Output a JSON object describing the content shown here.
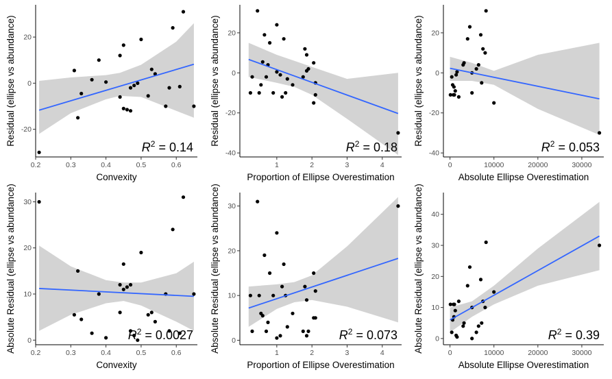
{
  "chart_data": [
    {
      "type": "scatter",
      "xlabel": "Convexity",
      "ylabel": "Residual (ellipse vs abundance)",
      "annotation": {
        "prefix": "R",
        "sup": "2",
        "value": " = 0.14"
      },
      "xlim": [
        0.2,
        0.66
      ],
      "ylim": [
        -32,
        34
      ],
      "xticks": [
        0.2,
        0.3,
        0.4,
        0.5,
        0.6
      ],
      "xticklabels": [
        "0.2",
        "0.3",
        "0.4",
        "0.5",
        "0.6"
      ],
      "yticks": [
        -20,
        0,
        20
      ],
      "yticklabels": [
        "-20",
        "0",
        "20"
      ],
      "points": [
        [
          0.21,
          -30
        ],
        [
          0.31,
          5.5
        ],
        [
          0.32,
          -15
        ],
        [
          0.33,
          -4.5
        ],
        [
          0.36,
          1.5
        ],
        [
          0.38,
          10
        ],
        [
          0.4,
          0.5
        ],
        [
          0.44,
          -6
        ],
        [
          0.44,
          12
        ],
        [
          0.45,
          16.5
        ],
        [
          0.45,
          -11
        ],
        [
          0.46,
          -11.5
        ],
        [
          0.47,
          -2
        ],
        [
          0.47,
          -12
        ],
        [
          0.48,
          -1
        ],
        [
          0.49,
          0
        ],
        [
          0.5,
          19
        ],
        [
          0.52,
          -5.5
        ],
        [
          0.53,
          6
        ],
        [
          0.54,
          4
        ],
        [
          0.57,
          -10
        ],
        [
          0.58,
          -2
        ],
        [
          0.59,
          24
        ],
        [
          0.61,
          -1.5
        ],
        [
          0.62,
          31
        ],
        [
          0.65,
          -10
        ]
      ],
      "trend": [
        [
          0.21,
          -11.7
        ],
        [
          0.65,
          8.2
        ]
      ],
      "band": [
        [
          0.21,
          -22
        ],
        [
          0.3,
          -13
        ],
        [
          0.4,
          -7
        ],
        [
          0.44,
          -5.5
        ],
        [
          0.5,
          -6
        ],
        [
          0.6,
          -12
        ],
        [
          0.65,
          -15
        ]
      ],
      "band_upper": [
        [
          0.21,
          1
        ],
        [
          0.3,
          2.5
        ],
        [
          0.4,
          3.5
        ],
        [
          0.44,
          4.5
        ],
        [
          0.5,
          8
        ],
        [
          0.6,
          18
        ],
        [
          0.65,
          26
        ]
      ]
    },
    {
      "type": "scatter",
      "xlabel": "Proportion of Ellipse Overestimation",
      "ylabel": "Residual (ellipse vs abundance)",
      "annotation": {
        "prefix": "R",
        "sup": "2",
        "value": " = 0.18"
      },
      "xlim": [
        -0.05,
        4.55
      ],
      "ylim": [
        -42,
        34
      ],
      "xticks": [
        1,
        2,
        3,
        4
      ],
      "xticklabels": [
        "1",
        "2",
        "3",
        "4"
      ],
      "yticks": [
        -40,
        -20,
        0,
        20
      ],
      "yticklabels": [
        "-40",
        "-20",
        "0",
        "20"
      ],
      "points": [
        [
          0.25,
          -10
        ],
        [
          0.3,
          -2
        ],
        [
          0.45,
          31
        ],
        [
          0.5,
          -10
        ],
        [
          0.55,
          -6
        ],
        [
          0.6,
          5.5
        ],
        [
          0.65,
          19
        ],
        [
          0.7,
          -2
        ],
        [
          0.75,
          4
        ],
        [
          0.8,
          15
        ],
        [
          0.9,
          -10
        ],
        [
          1.0,
          0.5
        ],
        [
          1.0,
          24
        ],
        [
          1.1,
          -1
        ],
        [
          1.15,
          -12
        ],
        [
          1.2,
          17
        ],
        [
          1.25,
          -10
        ],
        [
          1.3,
          -3
        ],
        [
          1.45,
          -6
        ],
        [
          1.75,
          -2
        ],
        [
          1.8,
          12
        ],
        [
          1.85,
          9
        ],
        [
          1.85,
          1
        ],
        [
          1.9,
          2
        ],
        [
          2.05,
          -15
        ],
        [
          2.1,
          -11
        ],
        [
          2.1,
          -5
        ],
        [
          2.05,
          5
        ],
        [
          4.45,
          -30
        ]
      ],
      "trend": [
        [
          0.2,
          6.7
        ],
        [
          4.45,
          -20.3
        ]
      ],
      "band_lower": [
        [
          0.2,
          -2
        ],
        [
          1.0,
          -5
        ],
        [
          1.5,
          -7
        ],
        [
          2.0,
          -11
        ],
        [
          3.0,
          -23
        ],
        [
          4.45,
          -41
        ]
      ],
      "band_upper": [
        [
          0.2,
          15
        ],
        [
          1.0,
          9
        ],
        [
          1.5,
          6
        ],
        [
          2.0,
          3
        ],
        [
          3.0,
          -3
        ],
        [
          4.45,
          0
        ]
      ]
    },
    {
      "type": "scatter",
      "xlabel": "Absolute Ellipse Overestimation",
      "ylabel": "Residual (ellipse vs abundance)",
      "annotation": {
        "prefix": "R",
        "sup": "2",
        "value": " = 0.053"
      },
      "xlim": [
        -1500,
        35000
      ],
      "ylim": [
        -42,
        34
      ],
      "xticks": [
        0,
        10000,
        20000,
        30000
      ],
      "xticklabels": [
        "0",
        "10000",
        "20000",
        "30000"
      ],
      "yticks": [
        -40,
        -20,
        0,
        20
      ],
      "yticklabels": [
        "-40",
        "-20",
        "0",
        "20"
      ],
      "points": [
        [
          100,
          -11
        ],
        [
          400,
          -2
        ],
        [
          600,
          -6
        ],
        [
          800,
          -11
        ],
        [
          900,
          -7
        ],
        [
          1000,
          -11
        ],
        [
          1200,
          -9
        ],
        [
          1400,
          -1
        ],
        [
          1600,
          0.5
        ],
        [
          2000,
          -12
        ],
        [
          3000,
          4
        ],
        [
          3200,
          5
        ],
        [
          4000,
          17
        ],
        [
          4500,
          23
        ],
        [
          5000,
          -10
        ],
        [
          5000,
          0
        ],
        [
          6000,
          2
        ],
        [
          6500,
          4
        ],
        [
          7000,
          19
        ],
        [
          7200,
          -5
        ],
        [
          7500,
          12
        ],
        [
          8000,
          10
        ],
        [
          8200,
          31
        ],
        [
          10000,
          -15
        ],
        [
          34000,
          -30
        ]
      ],
      "trend": [
        [
          0,
          2.3
        ],
        [
          34000,
          -13
        ]
      ],
      "band_lower": [
        [
          0,
          -4
        ],
        [
          5000,
          -4
        ],
        [
          10000,
          -6
        ],
        [
          20000,
          -18
        ],
        [
          34000,
          -31
        ]
      ],
      "band_upper": [
        [
          0,
          8
        ],
        [
          5000,
          5
        ],
        [
          10000,
          1
        ],
        [
          20000,
          9
        ],
        [
          34000,
          15
        ]
      ]
    },
    {
      "type": "scatter",
      "xlabel": "Convexity",
      "ylabel": "Absolute Residual (ellipse vs abundance)",
      "annotation": {
        "prefix": "R",
        "sup": "2",
        "value": " = 0.0027"
      },
      "xlim": [
        0.2,
        0.66
      ],
      "ylim": [
        -1,
        32
      ],
      "xticks": [
        0.2,
        0.3,
        0.4,
        0.5,
        0.6
      ],
      "xticklabels": [
        "0.2",
        "0.3",
        "0.4",
        "0.5",
        "0.6"
      ],
      "yticks": [
        0,
        10,
        20,
        30
      ],
      "yticklabels": [
        "0",
        "10",
        "20",
        "30"
      ],
      "points": [
        [
          0.21,
          30
        ],
        [
          0.31,
          5.5
        ],
        [
          0.32,
          15
        ],
        [
          0.33,
          4.5
        ],
        [
          0.36,
          1.5
        ],
        [
          0.38,
          10
        ],
        [
          0.4,
          0.5
        ],
        [
          0.44,
          6
        ],
        [
          0.44,
          12
        ],
        [
          0.45,
          16.5
        ],
        [
          0.45,
          11
        ],
        [
          0.46,
          11.5
        ],
        [
          0.47,
          2
        ],
        [
          0.47,
          12
        ],
        [
          0.48,
          1
        ],
        [
          0.49,
          0
        ],
        [
          0.5,
          19
        ],
        [
          0.52,
          5.5
        ],
        [
          0.53,
          6
        ],
        [
          0.54,
          4
        ],
        [
          0.57,
          10
        ],
        [
          0.58,
          2
        ],
        [
          0.59,
          24
        ],
        [
          0.61,
          1.5
        ],
        [
          0.62,
          31
        ],
        [
          0.65,
          10
        ]
      ],
      "trend": [
        [
          0.21,
          11.2
        ],
        [
          0.65,
          9.5
        ]
      ],
      "band_lower": [
        [
          0.21,
          2
        ],
        [
          0.3,
          5.5
        ],
        [
          0.4,
          8
        ],
        [
          0.45,
          8.5
        ],
        [
          0.5,
          7.5
        ],
        [
          0.6,
          4
        ],
        [
          0.65,
          2
        ]
      ],
      "band_upper": [
        [
          0.21,
          20.5
        ],
        [
          0.3,
          16
        ],
        [
          0.4,
          13
        ],
        [
          0.45,
          12.5
        ],
        [
          0.5,
          12.5
        ],
        [
          0.6,
          14.5
        ],
        [
          0.65,
          17
        ]
      ]
    },
    {
      "type": "scatter",
      "xlabel": "Proportion of Ellipse Overestimation",
      "ylabel": "Absolute Residual (ellipse vs abundance)",
      "annotation": {
        "prefix": "R",
        "sup": "2",
        "value": " = 0.073"
      },
      "xlim": [
        -0.05,
        4.55
      ],
      "ylim": [
        -1,
        33
      ],
      "xticks": [
        1,
        2,
        3,
        4
      ],
      "xticklabels": [
        "1",
        "2",
        "3",
        "4"
      ],
      "yticks": [
        0,
        10,
        20,
        30
      ],
      "yticklabels": [
        "0",
        "10",
        "20",
        "30"
      ],
      "points": [
        [
          0.25,
          10
        ],
        [
          0.3,
          2
        ],
        [
          0.45,
          31
        ],
        [
          0.5,
          10
        ],
        [
          0.55,
          6
        ],
        [
          0.6,
          5.5
        ],
        [
          0.65,
          19
        ],
        [
          0.7,
          2
        ],
        [
          0.75,
          4
        ],
        [
          0.8,
          15
        ],
        [
          0.9,
          10
        ],
        [
          1.0,
          0.5
        ],
        [
          1.0,
          24
        ],
        [
          1.1,
          1
        ],
        [
          1.15,
          12
        ],
        [
          1.2,
          17
        ],
        [
          1.25,
          10
        ],
        [
          1.3,
          3
        ],
        [
          1.45,
          6
        ],
        [
          1.75,
          2
        ],
        [
          1.8,
          12
        ],
        [
          1.85,
          9
        ],
        [
          1.85,
          1
        ],
        [
          1.9,
          2
        ],
        [
          2.05,
          15
        ],
        [
          2.1,
          11
        ],
        [
          2.1,
          5
        ],
        [
          2.05,
          5
        ],
        [
          4.45,
          30
        ]
      ],
      "trend": [
        [
          0.2,
          7.2
        ],
        [
          4.45,
          18.3
        ]
      ],
      "band_lower": [
        [
          0.2,
          3
        ],
        [
          1.0,
          7
        ],
        [
          1.5,
          8.5
        ],
        [
          2.0,
          9
        ],
        [
          3.0,
          7.5
        ],
        [
          4.45,
          4
        ]
      ],
      "band_upper": [
        [
          0.2,
          12
        ],
        [
          1.0,
          12.5
        ],
        [
          1.5,
          13
        ],
        [
          2.0,
          14.5
        ],
        [
          3.0,
          21
        ],
        [
          4.45,
          32
        ]
      ]
    },
    {
      "type": "scatter",
      "xlabel": "Absolute Ellipse Overestimation",
      "ylabel": "Absolute Residual (ellipse vs abundance)",
      "annotation": {
        "prefix": "R",
        "sup": "2",
        "value": " = 0.39"
      },
      "xlim": [
        -1500,
        35000
      ],
      "ylim": [
        -2,
        47
      ],
      "xticks": [
        0,
        10000,
        20000,
        30000
      ],
      "xticklabels": [
        "0",
        "10000",
        "20000",
        "30000"
      ],
      "yticks": [
        0,
        10,
        20,
        30,
        40
      ],
      "yticklabels": [
        "0",
        "10",
        "20",
        "30",
        "40"
      ],
      "points": [
        [
          100,
          11
        ],
        [
          400,
          2
        ],
        [
          600,
          6
        ],
        [
          800,
          11
        ],
        [
          900,
          7
        ],
        [
          1000,
          11
        ],
        [
          1200,
          9
        ],
        [
          1400,
          1
        ],
        [
          1600,
          0.5
        ],
        [
          2000,
          12
        ],
        [
          3000,
          4
        ],
        [
          3200,
          5
        ],
        [
          4000,
          17
        ],
        [
          4500,
          23
        ],
        [
          5000,
          10
        ],
        [
          5000,
          0
        ],
        [
          6000,
          2
        ],
        [
          6500,
          4
        ],
        [
          7000,
          19
        ],
        [
          7200,
          5
        ],
        [
          7500,
          12
        ],
        [
          8000,
          10
        ],
        [
          8200,
          31
        ],
        [
          10000,
          15
        ],
        [
          34000,
          30
        ]
      ],
      "trend": [
        [
          0,
          6
        ],
        [
          34000,
          33
        ]
      ],
      "band_lower": [
        [
          0,
          2
        ],
        [
          5000,
          7
        ],
        [
          10000,
          11
        ],
        [
          20000,
          17
        ],
        [
          34000,
          22
        ]
      ],
      "band_upper": [
        [
          0,
          10
        ],
        [
          5000,
          12
        ],
        [
          10000,
          17
        ],
        [
          20000,
          29
        ],
        [
          34000,
          44
        ]
      ]
    }
  ]
}
